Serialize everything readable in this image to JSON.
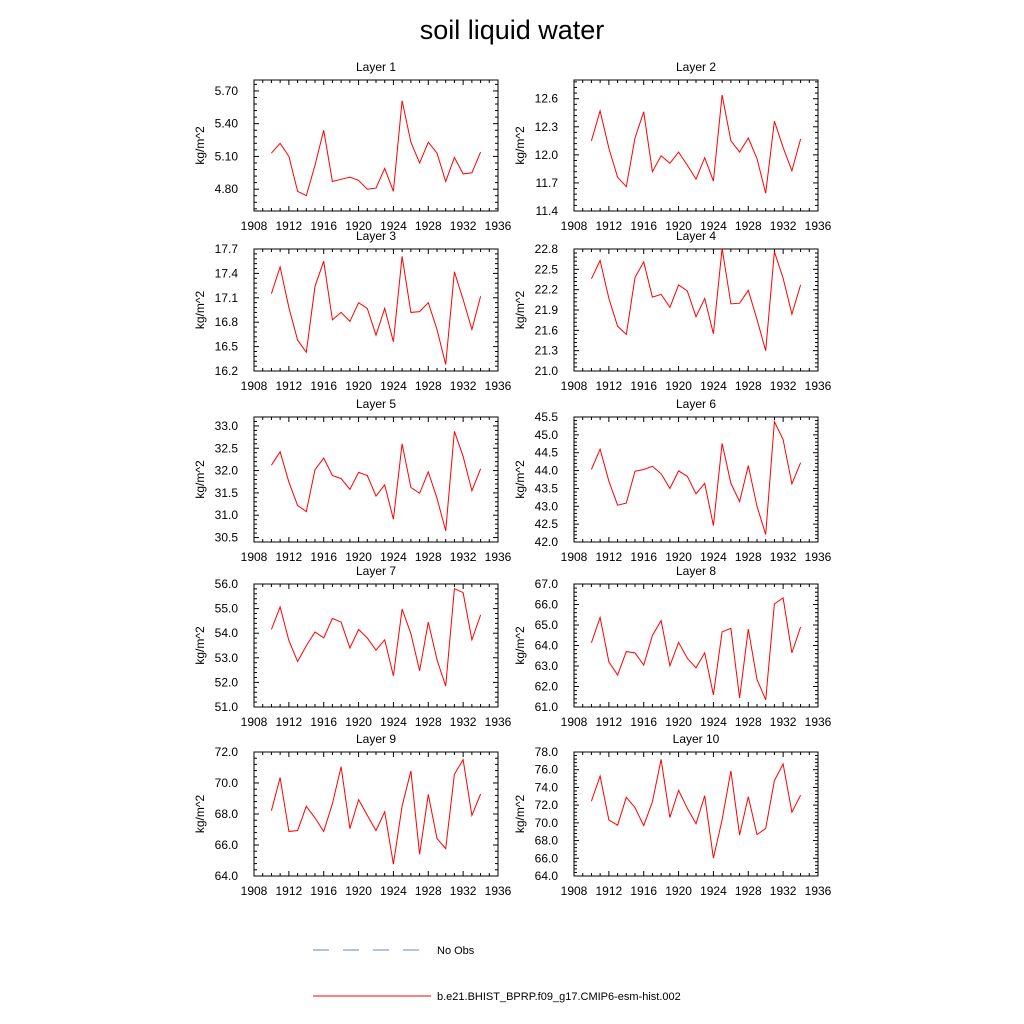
{
  "figure": {
    "title": "soil liquid water",
    "legend": [
      {
        "label": "No Obs",
        "color": "#6a7fd4",
        "style": "dashed"
      },
      {
        "label": "b.e21.BHIST_BPRP.f09_g17.CMIP6-esm-hist.002",
        "color": "#ff0000",
        "style": "solid"
      }
    ]
  },
  "chart_data": [
    {
      "type": "line",
      "title": "Layer 1",
      "ylabel": "kg/m^2",
      "xlabel": "",
      "xlim": [
        1908,
        1936
      ],
      "ylim": [
        4.6,
        5.8
      ],
      "xticks": [
        1908,
        1912,
        1916,
        1920,
        1924,
        1928,
        1932,
        1936
      ],
      "yticks": [
        "4.80",
        "5.10",
        "5.40",
        "5.70"
      ],
      "series": [
        {
          "color": "#ff0000",
          "x": [
            1910,
            1911,
            1912,
            1913,
            1914,
            1915,
            1916,
            1917,
            1918,
            1919,
            1920,
            1921,
            1922,
            1923,
            1924,
            1925,
            1926,
            1927,
            1928,
            1929,
            1930,
            1931,
            1932,
            1933,
            1934
          ],
          "values": [
            5.13,
            5.22,
            5.1,
            4.78,
            4.74,
            5.02,
            5.34,
            4.87,
            4.89,
            4.91,
            4.88,
            4.8,
            4.81,
            4.99,
            4.78,
            5.61,
            5.23,
            5.04,
            5.23,
            5.13,
            4.87,
            5.09,
            4.94,
            4.95,
            5.14
          ]
        }
      ]
    },
    {
      "type": "line",
      "title": "Layer 2",
      "ylabel": "kg/m^2",
      "xlabel": "",
      "xlim": [
        1908,
        1936
      ],
      "ylim": [
        11.4,
        12.8
      ],
      "xticks": [
        1908,
        1912,
        1916,
        1920,
        1924,
        1928,
        1932,
        1936
      ],
      "yticks": [
        "11.4",
        "11.7",
        "12.0",
        "12.3",
        "12.6"
      ],
      "series": [
        {
          "color": "#ff0000",
          "x": [
            1910,
            1911,
            1912,
            1913,
            1914,
            1915,
            1916,
            1917,
            1918,
            1919,
            1920,
            1921,
            1922,
            1923,
            1924,
            1925,
            1926,
            1927,
            1928,
            1929,
            1930,
            1931,
            1932,
            1933,
            1934
          ],
          "values": [
            12.15,
            12.47,
            12.07,
            11.76,
            11.66,
            12.18,
            12.46,
            11.82,
            11.99,
            11.91,
            12.03,
            11.89,
            11.74,
            11.97,
            11.72,
            12.64,
            12.15,
            12.03,
            12.18,
            11.96,
            11.59,
            12.36,
            12.08,
            11.83,
            12.17
          ]
        }
      ]
    },
    {
      "type": "line",
      "title": "Layer 3",
      "ylabel": "kg/m^2",
      "xlabel": "",
      "xlim": [
        1908,
        1936
      ],
      "ylim": [
        16.2,
        17.7
      ],
      "xticks": [
        1908,
        1912,
        1916,
        1920,
        1924,
        1928,
        1932,
        1936
      ],
      "yticks": [
        "16.2",
        "16.5",
        "16.8",
        "17.1",
        "17.4",
        "17.7"
      ],
      "series": [
        {
          "color": "#ff0000",
          "x": [
            1910,
            1911,
            1912,
            1913,
            1914,
            1915,
            1916,
            1917,
            1918,
            1919,
            1920,
            1921,
            1922,
            1923,
            1924,
            1925,
            1926,
            1927,
            1928,
            1929,
            1930,
            1931,
            1932,
            1933,
            1934
          ],
          "values": [
            17.15,
            17.48,
            16.98,
            16.58,
            16.43,
            17.24,
            17.55,
            16.83,
            16.92,
            16.81,
            17.04,
            16.97,
            16.64,
            16.97,
            16.56,
            17.61,
            16.92,
            16.93,
            17.04,
            16.71,
            16.28,
            17.42,
            17.08,
            16.71,
            17.12
          ]
        }
      ]
    },
    {
      "type": "line",
      "title": "Layer 4",
      "ylabel": "kg/m^2",
      "xlabel": "",
      "xlim": [
        1908,
        1936
      ],
      "ylim": [
        21.0,
        22.8
      ],
      "xticks": [
        1908,
        1912,
        1916,
        1920,
        1924,
        1928,
        1932,
        1936
      ],
      "yticks": [
        "21.0",
        "21.3",
        "21.6",
        "21.9",
        "22.2",
        "22.5",
        "22.8"
      ],
      "series": [
        {
          "color": "#ff0000",
          "x": [
            1910,
            1911,
            1912,
            1913,
            1914,
            1915,
            1916,
            1917,
            1918,
            1919,
            1920,
            1921,
            1922,
            1923,
            1924,
            1925,
            1926,
            1927,
            1928,
            1929,
            1930,
            1931,
            1932,
            1933,
            1934
          ],
          "values": [
            22.36,
            22.63,
            22.07,
            21.66,
            21.54,
            22.38,
            22.61,
            22.09,
            22.13,
            21.94,
            22.27,
            22.18,
            21.8,
            22.07,
            21.55,
            22.81,
            21.99,
            22.0,
            22.19,
            21.76,
            21.3,
            22.76,
            22.37,
            21.84,
            22.27
          ]
        }
      ]
    },
    {
      "type": "line",
      "title": "Layer 5",
      "ylabel": "kg/m^2",
      "xlabel": "",
      "xlim": [
        1908,
        1936
      ],
      "ylim": [
        30.4,
        33.2
      ],
      "xticks": [
        1908,
        1912,
        1916,
        1920,
        1924,
        1928,
        1932,
        1936
      ],
      "yticks": [
        "30.5",
        "31.0",
        "31.5",
        "32.0",
        "32.5",
        "33.0"
      ],
      "series": [
        {
          "color": "#ff0000",
          "x": [
            1910,
            1911,
            1912,
            1913,
            1914,
            1915,
            1916,
            1917,
            1918,
            1919,
            1920,
            1921,
            1922,
            1923,
            1924,
            1925,
            1926,
            1927,
            1928,
            1929,
            1930,
            1931,
            1932,
            1933,
            1934
          ],
          "values": [
            32.12,
            32.42,
            31.74,
            31.22,
            31.08,
            32.02,
            32.28,
            31.89,
            31.82,
            31.58,
            31.96,
            31.89,
            31.43,
            31.68,
            30.91,
            32.6,
            31.62,
            31.49,
            31.97,
            31.38,
            30.65,
            32.88,
            32.32,
            31.55,
            32.04
          ]
        }
      ]
    },
    {
      "type": "line",
      "title": "Layer 6",
      "ylabel": "kg/m^2",
      "xlabel": "",
      "xlim": [
        1908,
        1936
      ],
      "ylim": [
        42.0,
        45.5
      ],
      "xticks": [
        1908,
        1912,
        1916,
        1920,
        1924,
        1928,
        1932,
        1936
      ],
      "yticks": [
        "42.0",
        "42.5",
        "43.0",
        "43.5",
        "44.0",
        "44.5",
        "45.0",
        "45.5"
      ],
      "series": [
        {
          "color": "#ff0000",
          "x": [
            1910,
            1911,
            1912,
            1913,
            1914,
            1915,
            1916,
            1917,
            1918,
            1919,
            1920,
            1921,
            1922,
            1923,
            1924,
            1925,
            1926,
            1927,
            1928,
            1929,
            1930,
            1931,
            1932,
            1933,
            1934
          ],
          "values": [
            44.03,
            44.6,
            43.7,
            43.03,
            43.09,
            43.98,
            44.03,
            44.12,
            43.91,
            43.5,
            43.99,
            43.84,
            43.35,
            43.64,
            42.46,
            44.76,
            43.64,
            43.13,
            44.14,
            43.0,
            42.21,
            45.37,
            44.87,
            43.63,
            44.22
          ]
        }
      ]
    },
    {
      "type": "line",
      "title": "Layer 7",
      "ylabel": "kg/m^2",
      "xlabel": "",
      "xlim": [
        1908,
        1936
      ],
      "ylim": [
        51.0,
        56.0
      ],
      "xticks": [
        1908,
        1912,
        1916,
        1920,
        1924,
        1928,
        1932,
        1936
      ],
      "yticks": [
        "51.0",
        "52.0",
        "53.0",
        "54.0",
        "55.0",
        "56.0"
      ],
      "series": [
        {
          "color": "#ff0000",
          "x": [
            1910,
            1911,
            1912,
            1913,
            1914,
            1915,
            1916,
            1917,
            1918,
            1919,
            1920,
            1921,
            1922,
            1923,
            1924,
            1925,
            1926,
            1927,
            1928,
            1929,
            1930,
            1931,
            1932,
            1933,
            1934
          ],
          "values": [
            54.15,
            55.07,
            53.7,
            52.85,
            53.49,
            54.05,
            53.81,
            54.6,
            54.45,
            53.4,
            54.15,
            53.81,
            53.31,
            53.73,
            52.27,
            54.98,
            53.98,
            52.47,
            54.45,
            52.92,
            51.85,
            55.81,
            55.65,
            53.73,
            54.74
          ]
        }
      ]
    },
    {
      "type": "line",
      "title": "Layer 8",
      "ylabel": "kg/m^2",
      "xlabel": "",
      "xlim": [
        1908,
        1936
      ],
      "ylim": [
        61.0,
        67.0
      ],
      "xticks": [
        1908,
        1912,
        1916,
        1920,
        1924,
        1928,
        1932,
        1936
      ],
      "yticks": [
        "61.0",
        "62.0",
        "63.0",
        "64.0",
        "65.0",
        "66.0",
        "67.0"
      ],
      "series": [
        {
          "color": "#ff0000",
          "x": [
            1910,
            1911,
            1912,
            1913,
            1914,
            1915,
            1916,
            1917,
            1918,
            1919,
            1920,
            1921,
            1922,
            1923,
            1924,
            1925,
            1926,
            1927,
            1928,
            1929,
            1930,
            1931,
            1932,
            1933,
            1934
          ],
          "values": [
            64.13,
            65.37,
            63.2,
            62.56,
            63.7,
            63.64,
            63.05,
            64.49,
            65.22,
            63.01,
            64.15,
            63.38,
            62.91,
            63.64,
            61.59,
            64.67,
            64.84,
            61.44,
            64.8,
            62.34,
            61.35,
            66.03,
            66.32,
            63.64,
            64.9
          ]
        }
      ]
    },
    {
      "type": "line",
      "title": "Layer 9",
      "ylabel": "kg/m^2",
      "xlabel": "",
      "xlim": [
        1908,
        1936
      ],
      "ylim": [
        64.0,
        72.0
      ],
      "xticks": [
        1908,
        1912,
        1916,
        1920,
        1924,
        1928,
        1932,
        1936
      ],
      "yticks": [
        "64.0",
        "66.0",
        "68.0",
        "70.0",
        "72.0"
      ],
      "series": [
        {
          "color": "#ff0000",
          "x": [
            1910,
            1911,
            1912,
            1913,
            1914,
            1915,
            1916,
            1917,
            1918,
            1919,
            1920,
            1921,
            1922,
            1923,
            1924,
            1925,
            1926,
            1927,
            1928,
            1929,
            1930,
            1931,
            1932,
            1933,
            1934
          ],
          "values": [
            68.21,
            70.35,
            66.88,
            66.93,
            68.5,
            67.75,
            66.88,
            68.66,
            71.05,
            67.06,
            68.93,
            67.91,
            66.93,
            68.14,
            64.76,
            68.51,
            70.78,
            65.4,
            69.26,
            66.42,
            65.76,
            70.56,
            71.51,
            67.91,
            69.29
          ]
        }
      ]
    },
    {
      "type": "line",
      "title": "Layer 10",
      "ylabel": "kg/m^2",
      "xlabel": "",
      "xlim": [
        1908,
        1936
      ],
      "ylim": [
        64.0,
        78.0
      ],
      "xticks": [
        1908,
        1912,
        1916,
        1920,
        1924,
        1928,
        1932,
        1936
      ],
      "yticks": [
        "64.0",
        "66.0",
        "68.0",
        "70.0",
        "72.0",
        "74.0",
        "76.0",
        "78.0"
      ],
      "series": [
        {
          "color": "#ff0000",
          "x": [
            1910,
            1911,
            1912,
            1913,
            1914,
            1915,
            1916,
            1917,
            1918,
            1919,
            1920,
            1921,
            1922,
            1923,
            1924,
            1925,
            1926,
            1927,
            1928,
            1929,
            1930,
            1931,
            1932,
            1933,
            1934
          ],
          "values": [
            72.45,
            75.29,
            70.31,
            69.73,
            72.89,
            71.72,
            69.69,
            72.37,
            77.17,
            70.6,
            73.66,
            71.64,
            69.89,
            73.05,
            66.02,
            70.34,
            75.87,
            68.63,
            72.95,
            68.67,
            69.36,
            74.76,
            76.66,
            71.2,
            73.12
          ]
        }
      ]
    }
  ]
}
